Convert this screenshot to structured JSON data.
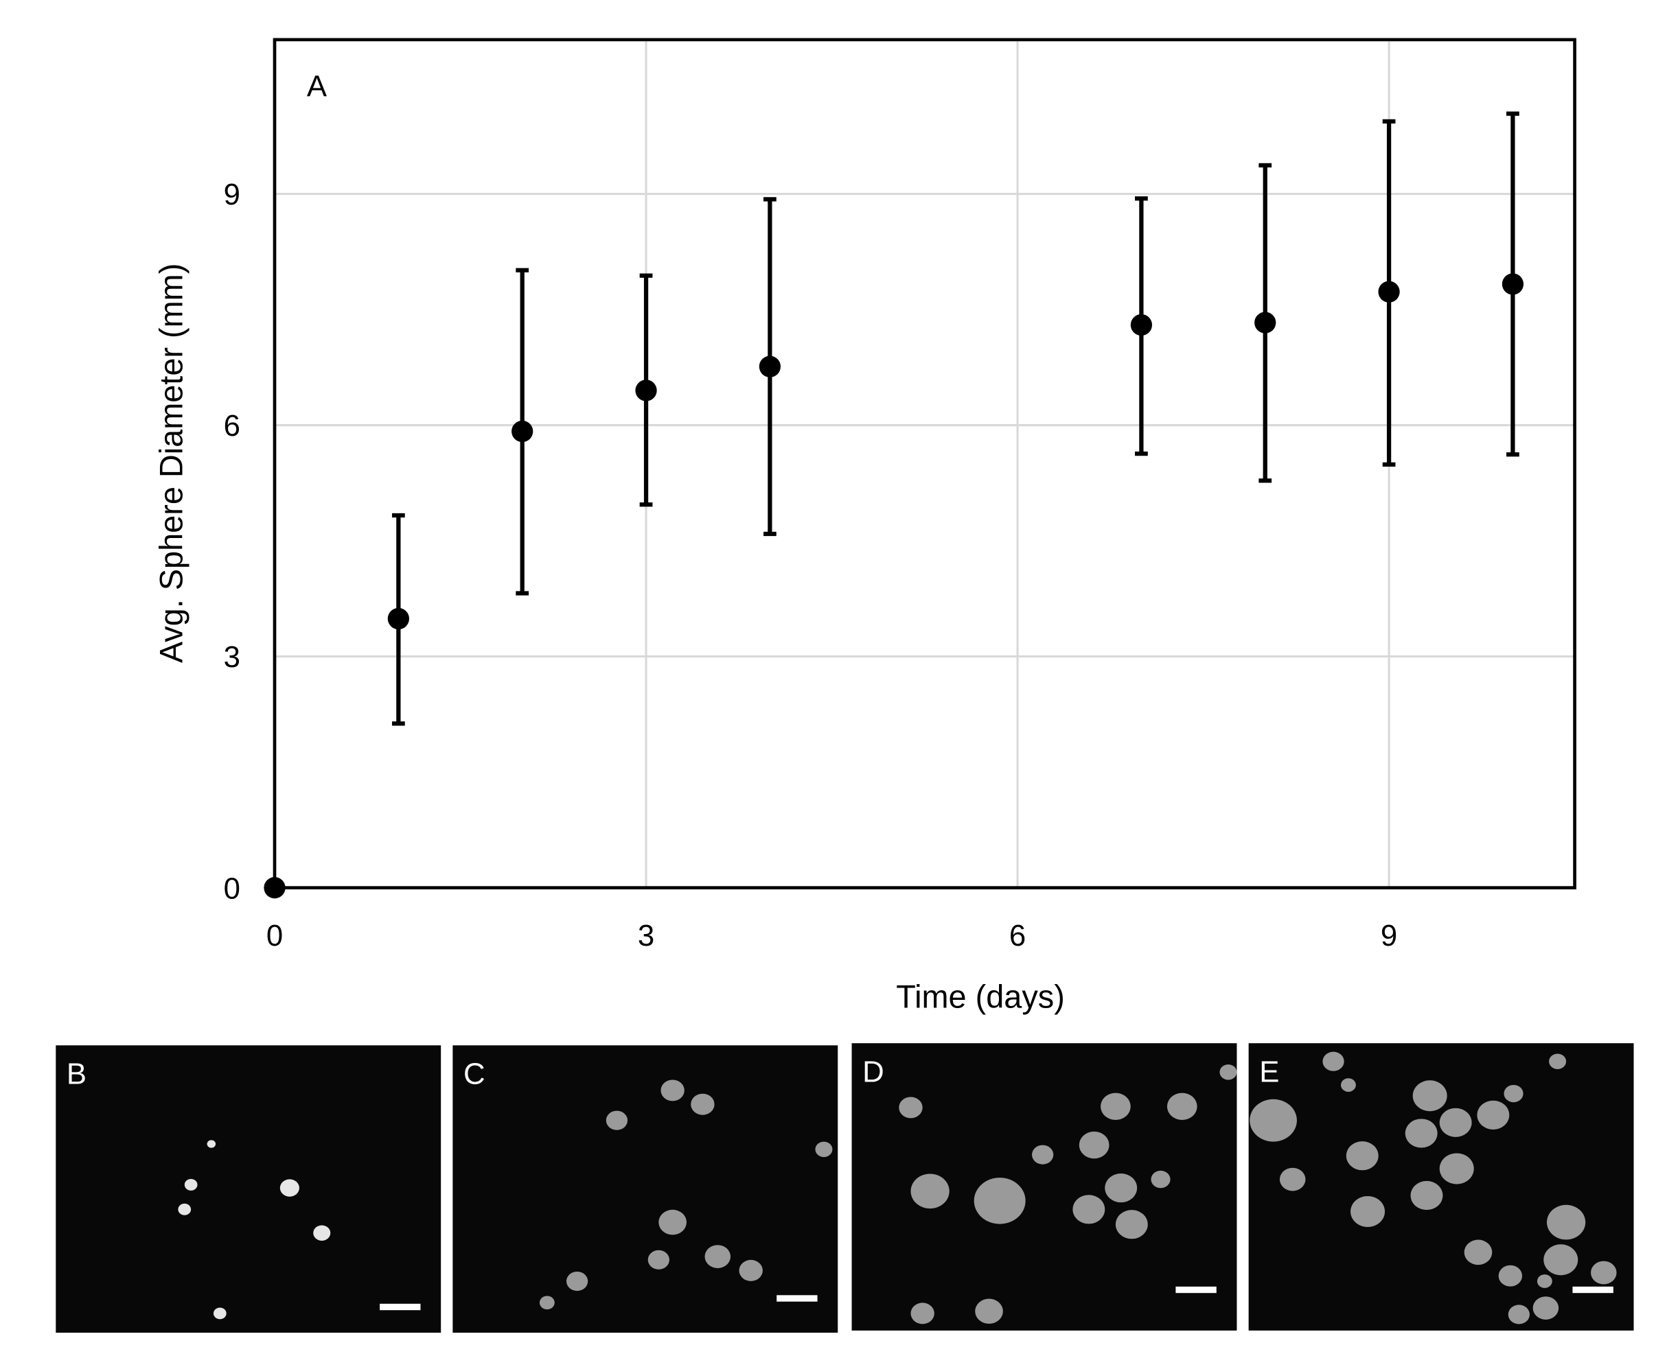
{
  "chart_data": {
    "type": "scatter",
    "panel_label": "A",
    "title": "",
    "xlabel": "Time (days)",
    "ylabel": "Avg. Sphere Diameter (mm)",
    "xlim": [
      0,
      10.5
    ],
    "ylim": [
      0,
      11
    ],
    "xticks": [
      0,
      3,
      6,
      9
    ],
    "yticks": [
      0,
      3,
      6,
      9
    ],
    "grid": true,
    "series": [
      {
        "name": "Avg. Sphere Diameter",
        "color": "#000000",
        "x": [
          0,
          1,
          2,
          3,
          4,
          7,
          8,
          9,
          10
        ],
        "y": [
          0,
          3.49,
          5.92,
          6.45,
          6.76,
          7.3,
          7.33,
          7.73,
          7.83
        ],
        "err_low": [
          0,
          2.13,
          3.82,
          4.97,
          4.59,
          5.63,
          5.28,
          5.49,
          5.62
        ],
        "err_high": [
          0,
          4.83,
          8.01,
          7.94,
          8.93,
          8.94,
          9.37,
          9.94,
          10.04
        ]
      }
    ]
  },
  "micrographs": [
    {
      "label": "B"
    },
    {
      "label": "C"
    },
    {
      "label": "D"
    },
    {
      "label": "E"
    }
  ]
}
